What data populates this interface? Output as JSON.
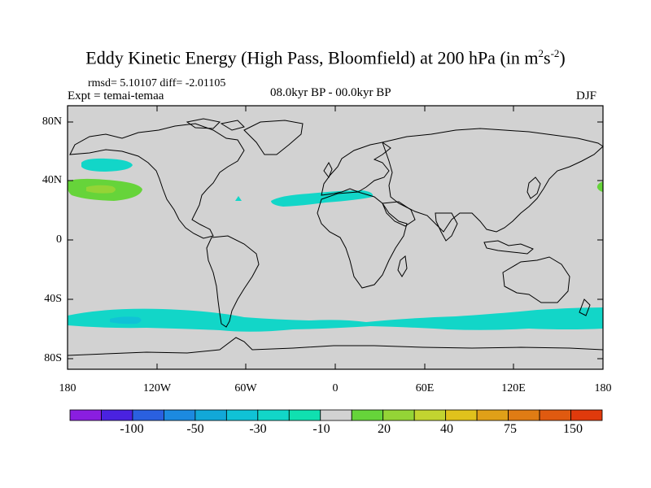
{
  "title": {
    "main": "Eddy Kinetic Energy (High Pass, Bloomfield) at 200 hPa (in m",
    "exp1": "2",
    "mid": "s",
    "exp2": "-2",
    "close": ")"
  },
  "stats": "rmsd= 5.10107 diff= -2.01105",
  "expt": "Expt = temai-temaa",
  "period": "08.0kyr BP - 00.0kyr BP",
  "season": "DJF",
  "lat_labels": [
    "80N",
    "40N",
    "0",
    "40S",
    "80S"
  ],
  "lon_labels": [
    "180",
    "120W",
    "60W",
    "0",
    "60E",
    "120E",
    "180"
  ],
  "colorbar": {
    "labels": [
      "-100",
      "-50",
      "-30",
      "-10",
      "20",
      "40",
      "75",
      "150"
    ],
    "colors": [
      "#8a1ee0",
      "#4a22e0",
      "#2a60e0",
      "#1c8ae0",
      "#12a8d8",
      "#10c2d6",
      "#12d6c8",
      "#10e0b0",
      "#d2d2d2",
      "#66d43a",
      "#94d436",
      "#c2d430",
      "#e0c21c",
      "#e0a018",
      "#e07c14",
      "#e05a10",
      "#e03a0c"
    ]
  },
  "chart_data": {
    "type": "map",
    "variable": "Eddy Kinetic Energy difference at 200 hPa",
    "units": "m2 s-2",
    "background_color": "#d2d2d2",
    "regions": [
      {
        "name": "north-pacific-positive",
        "level": "10 to 20",
        "color": "#66d43a"
      },
      {
        "name": "north-pacific-core",
        "level": "20 to 30",
        "color": "#94d436"
      },
      {
        "name": "north-pacific-upper-negative",
        "level": "-10",
        "color": "#12d6c8"
      },
      {
        "name": "north-africa-negative",
        "level": "-10",
        "color": "#12d6c8"
      },
      {
        "name": "southern-ocean-negative",
        "level": "-10",
        "color": "#12d6c8"
      },
      {
        "name": "southern-ocean-core",
        "level": "-30",
        "color": "#10c2d6"
      }
    ]
  }
}
